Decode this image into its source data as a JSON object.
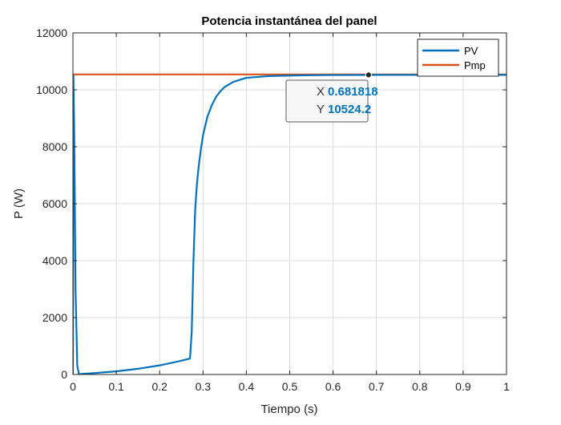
{
  "chart_data": {
    "type": "line",
    "title": "Potencia instantánea del panel",
    "xlabel": "Tiempo (s)",
    "ylabel": "P (W)",
    "xlim": [
      0,
      1
    ],
    "ylim": [
      0,
      12000
    ],
    "xticks": [
      0,
      0.1,
      0.2,
      0.3,
      0.4,
      0.5,
      0.6,
      0.7,
      0.8,
      0.9,
      1
    ],
    "xtick_labels": [
      "0",
      "0.1",
      "0.2",
      "0.3",
      "0.4",
      "0.5",
      "0.6",
      "0.7",
      "0.8",
      "0.9",
      "1"
    ],
    "yticks": [
      0,
      2000,
      4000,
      6000,
      8000,
      10000,
      12000
    ],
    "ytick_labels": [
      "0",
      "2000",
      "4000",
      "6000",
      "8000",
      "10000",
      "12000"
    ],
    "grid": true,
    "legend_position": "top-right",
    "series": [
      {
        "name": "PV",
        "color": "#0072BD",
        "x": [
          0,
          0.001,
          0.003,
          0.006,
          0.01,
          0.014,
          0.02,
          0.05,
          0.1,
          0.15,
          0.2,
          0.24,
          0.265,
          0.27,
          0.274,
          0.278,
          0.282,
          0.286,
          0.29,
          0.295,
          0.3,
          0.31,
          0.32,
          0.33,
          0.34,
          0.35,
          0.37,
          0.4,
          0.45,
          0.5,
          0.55,
          0.6,
          0.65,
          0.7,
          0.8,
          0.9,
          1
        ],
        "values": [
          0,
          10500,
          8500,
          3000,
          300,
          0,
          20,
          50,
          110,
          200,
          320,
          450,
          540,
          560,
          1500,
          4000,
          5800,
          6700,
          7300,
          7900,
          8400,
          9050,
          9450,
          9750,
          9950,
          10100,
          10280,
          10420,
          10480,
          10500,
          10515,
          10520,
          10522,
          10524,
          10524,
          10524,
          10524
        ]
      },
      {
        "name": "Pmp",
        "color": "#D95319",
        "x": [
          0,
          1
        ],
        "values": [
          10540,
          10540
        ]
      }
    ],
    "datatip": {
      "x_label": "X",
      "x_value": "0.681818",
      "y_label": "Y",
      "y_value": "10524.2",
      "point": [
        0.681818,
        10524.2
      ],
      "value_color": "#0072BD"
    }
  }
}
